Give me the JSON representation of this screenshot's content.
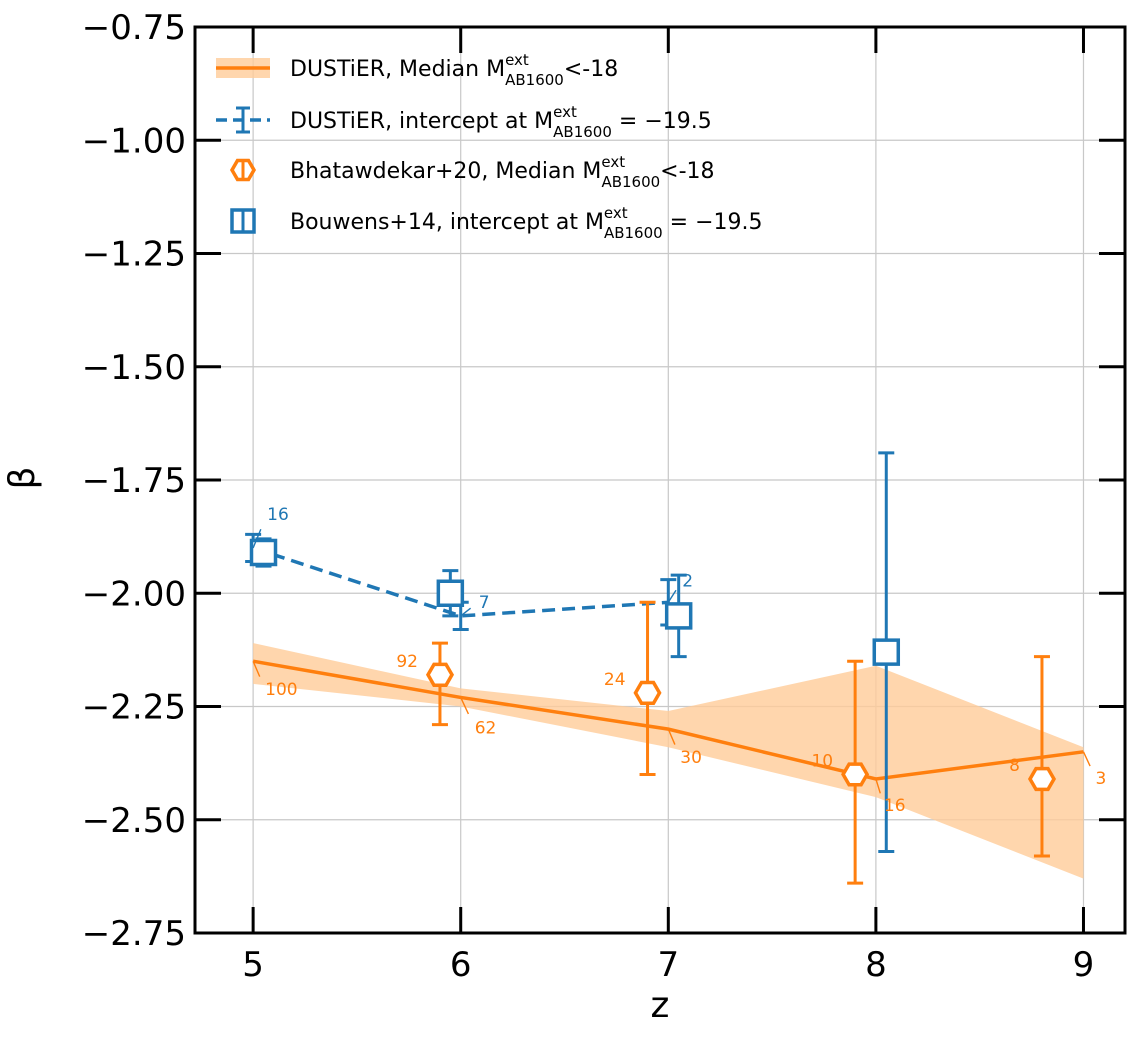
{
  "chart_data": {
    "type": "line",
    "xlabel": "z",
    "ylabel": "β",
    "xlim": [
      4.72,
      9.2
    ],
    "ylim": [
      -2.75,
      -0.75
    ],
    "xticks": [
      5,
      6,
      7,
      8,
      9
    ],
    "xtick_labels": [
      "5",
      "6",
      "7",
      "8",
      "9"
    ],
    "yticks": [
      -0.75,
      -1.0,
      -1.25,
      -1.5,
      -1.75,
      -2.0,
      -2.25,
      -2.5,
      -2.75
    ],
    "ytick_labels": [
      "−0.75",
      "−1.00",
      "−1.25",
      "−1.50",
      "−1.75",
      "−2.00",
      "−2.25",
      "−2.50",
      "−2.75"
    ],
    "grid": true,
    "legend_position": "top-left",
    "colors": {
      "orange": "#ff7f0e",
      "blue": "#1f77b4",
      "band": "#ffcc99"
    },
    "legend": [
      {
        "pre": "DUSTiER, Median M",
        "sup": "ext",
        "sub": "AB1600",
        "post": "<-18"
      },
      {
        "pre": "DUSTiER, intercept at M",
        "sup": "ext",
        "sub": "AB1600",
        "post": " = −19.5"
      },
      {
        "pre": "Bhatawdekar+20, Median M",
        "sup": "ext",
        "sub": "AB1600",
        "post": "<-18"
      },
      {
        "pre": "Bouwens+14, intercept at M",
        "sup": "ext",
        "sub": "AB1600",
        "post": " = −19.5"
      }
    ],
    "series": [
      {
        "name": "DUSTiER, Median M_AB1600^ext < -18",
        "style": "solid-line-with-band",
        "color": "orange",
        "x": [
          5,
          6,
          7,
          8,
          9
        ],
        "y": [
          -2.15,
          -2.23,
          -2.3,
          -2.41,
          -2.35
        ],
        "band_low": [
          -2.2,
          -2.25,
          -2.34,
          -2.45,
          -2.63
        ],
        "band_high": [
          -2.11,
          -2.21,
          -2.26,
          -2.16,
          -2.34
        ],
        "counts": [
          "100",
          "62",
          "30",
          "16",
          "3"
        ]
      },
      {
        "name": "DUSTiER, intercept at M_AB1600^ext = -19.5",
        "style": "dashed-line-with-errorbars",
        "color": "blue",
        "x": [
          5,
          6,
          7
        ],
        "y": [
          -1.9,
          -2.05,
          -2.02
        ],
        "err_low": [
          -1.93,
          -2.08,
          -2.07
        ],
        "err_high": [
          -1.87,
          -2.02,
          -1.97
        ],
        "counts": [
          "16",
          "7",
          "2"
        ]
      },
      {
        "name": "Bhatawdekar+20, Median M_AB1600^ext < -18",
        "style": "hexagon-markers",
        "color": "orange",
        "x": [
          5.9,
          6.9,
          7.9,
          8.8
        ],
        "y": [
          -2.18,
          -2.22,
          -2.4,
          -2.41
        ],
        "err_low": [
          -2.29,
          -2.4,
          -2.64,
          -2.58
        ],
        "err_high": [
          -2.11,
          -2.02,
          -2.15,
          -2.14
        ],
        "counts": [
          "92",
          "24",
          "10",
          "8"
        ]
      },
      {
        "name": "Bouwens+14, intercept at M_AB1600^ext = -19.5",
        "style": "square-markers",
        "color": "blue",
        "x": [
          5.05,
          5.95,
          7.05,
          8.05
        ],
        "y": [
          -1.91,
          -2.0,
          -2.05,
          -2.13
        ],
        "err_low": [
          -1.94,
          -2.05,
          -2.14,
          -2.57
        ],
        "err_high": [
          -1.88,
          -1.95,
          -1.96,
          -1.69
        ]
      }
    ]
  }
}
